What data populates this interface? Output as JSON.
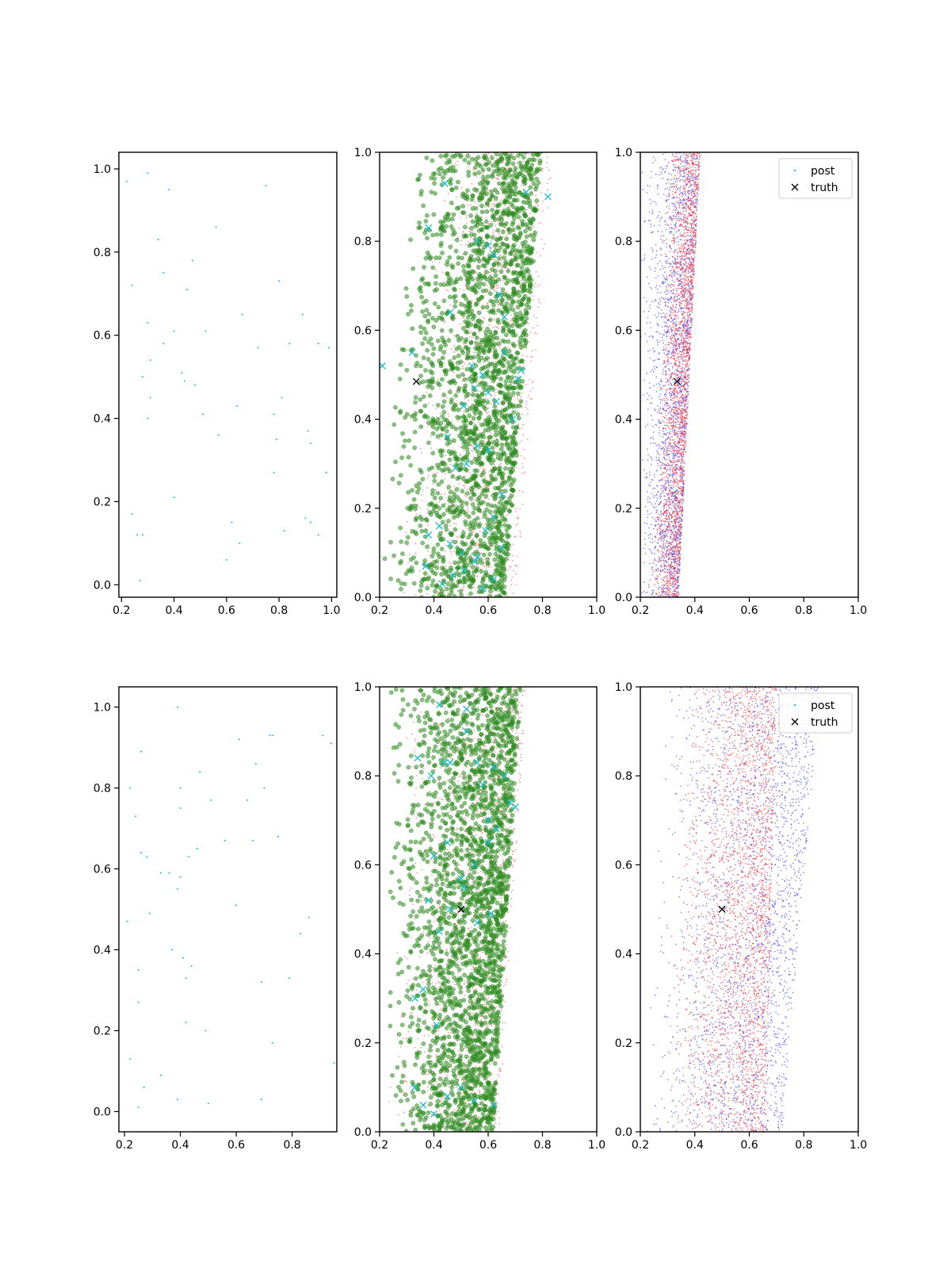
{
  "chart_data": [
    {
      "panel": "top-left",
      "type": "scatter",
      "xlim": [
        0.19,
        1.02
      ],
      "ylim": [
        -0.03,
        1.04
      ],
      "xticks": [
        "0.2",
        "0.4",
        "0.6",
        "0.8",
        "1.0"
      ],
      "yticks": [
        "0.0",
        "0.2",
        "0.4",
        "0.6",
        "0.8",
        "1.0"
      ],
      "grid": false,
      "series": [
        {
          "color": "#17becf",
          "marker": "dot",
          "x": [
            0.22,
            0.3,
            0.38,
            0.75,
            0.56,
            0.34,
            0.47,
            0.36,
            0.24,
            0.45,
            0.8,
            0.66,
            0.3,
            0.4,
            0.52,
            0.89,
            0.36,
            0.95,
            0.84,
            0.99,
            0.72,
            0.31,
            0.43,
            0.28,
            0.48,
            0.31,
            0.44,
            0.81,
            0.57,
            0.64,
            0.78,
            0.3,
            0.51,
            0.79,
            0.91,
            0.92,
            0.78,
            0.98,
            0.4,
            0.24,
            0.62,
            0.9,
            0.92,
            0.26,
            0.28,
            0.82,
            0.95,
            0.65,
            0.6,
            0.27
          ],
          "y": [
            0.97,
            0.99,
            0.95,
            0.96,
            0.86,
            0.83,
            0.78,
            0.75,
            0.72,
            0.71,
            0.73,
            0.65,
            0.63,
            0.61,
            0.61,
            0.65,
            0.58,
            0.58,
            0.58,
            0.57,
            0.57,
            0.54,
            0.51,
            0.5,
            0.48,
            0.45,
            0.49,
            0.45,
            0.36,
            0.43,
            0.41,
            0.4,
            0.41,
            0.35,
            0.37,
            0.34,
            0.27,
            0.27,
            0.21,
            0.17,
            0.15,
            0.16,
            0.15,
            0.12,
            0.12,
            0.13,
            0.12,
            0.1,
            0.06,
            0.01
          ]
        }
      ]
    },
    {
      "panel": "top-middle",
      "type": "scatter",
      "xlim": [
        0.2,
        1.0
      ],
      "ylim": [
        0.0,
        1.0
      ],
      "xticks": [
        "0.2",
        "0.4",
        "0.6",
        "0.8",
        "1.0"
      ],
      "yticks": [
        "0.0",
        "0.2",
        "0.4",
        "0.6",
        "0.8",
        "1.0"
      ],
      "grid": false,
      "generated_clouds": [
        {
          "color": "#ff4040",
          "marker": "dot",
          "count": 1400,
          "band_left_at_y0": [
            0.26,
            0.58
          ],
          "band_left_at_y1": [
            0.42,
            0.7
          ],
          "band_right_at_y0": 0.7,
          "band_right_at_y1": 0.84
        },
        {
          "color": "#2b8a1e",
          "marker": "circle",
          "count": 2200,
          "band_left_at_y0": [
            0.2,
            0.66
          ],
          "band_left_at_y1": [
            0.3,
            0.8
          ]
        }
      ],
      "series": [
        {
          "color": "#17becf",
          "marker": "x",
          "x": [
            0.21,
            0.32,
            0.38,
            0.44,
            0.46,
            0.56,
            0.6,
            0.62,
            0.64,
            0.66,
            0.72,
            0.74,
            0.82,
            0.55,
            0.58,
            0.6,
            0.63,
            0.66,
            0.69,
            0.71,
            0.45,
            0.51,
            0.54,
            0.56,
            0.48,
            0.52,
            0.6,
            0.38,
            0.42,
            0.46,
            0.5,
            0.55,
            0.59,
            0.62,
            0.65,
            0.37,
            0.43,
            0.47,
            0.51,
            0.56,
            0.58,
            0.62,
            0.65
          ],
          "y": [
            0.52,
            0.55,
            0.83,
            0.93,
            0.64,
            0.8,
            0.79,
            0.77,
            0.68,
            0.63,
            0.51,
            0.91,
            0.9,
            0.47,
            0.5,
            0.46,
            0.44,
            0.55,
            0.4,
            0.49,
            0.36,
            0.43,
            0.52,
            0.34,
            0.29,
            0.3,
            0.33,
            0.14,
            0.16,
            0.12,
            0.1,
            0.08,
            0.15,
            0.18,
            0.23,
            0.07,
            0.03,
            0.05,
            0.06,
            0.09,
            0.02,
            0.04,
            0.11
          ]
        },
        {
          "color": "#000000",
          "marker": "x",
          "x": [
            0.335
          ],
          "y": [
            0.485
          ]
        }
      ]
    },
    {
      "panel": "top-right",
      "type": "scatter",
      "xlim": [
        0.2,
        1.0
      ],
      "ylim": [
        0.0,
        1.0
      ],
      "xticks": [
        "0.2",
        "0.4",
        "0.6",
        "0.8",
        "1.0"
      ],
      "yticks": [
        "0.0",
        "0.2",
        "0.4",
        "0.6",
        "0.8",
        "1.0"
      ],
      "grid": false,
      "legend": {
        "placement": "top-right",
        "entries": [
          {
            "label": "post",
            "color": "#17becf",
            "marker": "dot"
          },
          {
            "label": "truth",
            "color": "#000000",
            "marker": "x"
          }
        ]
      },
      "generated_clouds": [
        {
          "color": "#3030ff",
          "marker": "dot",
          "count": 2200,
          "band_left_at_y0": [
            0.2,
            0.34
          ],
          "band_left_at_y1": [
            0.2,
            0.42
          ]
        },
        {
          "color": "#ff2020",
          "marker": "dot",
          "count": 2200,
          "band_left_at_y0": [
            0.24,
            0.34
          ],
          "band_left_at_y1": [
            0.3,
            0.42
          ]
        }
      ],
      "series": [
        {
          "color": "#000000",
          "marker": "x",
          "x": [
            0.335
          ],
          "y": [
            0.485
          ]
        }
      ]
    },
    {
      "panel": "bottom-left",
      "type": "scatter",
      "xlim": [
        0.18,
        0.96
      ],
      "ylim": [
        -0.05,
        1.05
      ],
      "xticks": [
        "0.2",
        "0.4",
        "0.6",
        "0.8"
      ],
      "yticks": [
        "0.0",
        "0.2",
        "0.4",
        "0.6",
        "0.8",
        "1.0"
      ],
      "grid": false,
      "series": [
        {
          "color": "#17becf",
          "marker": "dot",
          "x": [
            0.39,
            0.61,
            0.67,
            0.72,
            0.94,
            0.73,
            0.91,
            0.26,
            0.22,
            0.4,
            0.47,
            0.7,
            0.64,
            0.24,
            0.4,
            0.51,
            0.66,
            0.75,
            0.56,
            0.26,
            0.28,
            0.46,
            0.43,
            0.33,
            0.36,
            0.4,
            0.39,
            0.6,
            0.29,
            0.21,
            0.86,
            0.83,
            0.37,
            0.41,
            0.44,
            0.25,
            0.42,
            0.69,
            0.79,
            0.25,
            0.42,
            0.49,
            0.73,
            0.22,
            0.33,
            0.95,
            0.27,
            0.39,
            0.5,
            0.69,
            0.25
          ],
          "y": [
            1.0,
            0.92,
            0.86,
            0.93,
            0.91,
            0.93,
            0.93,
            0.89,
            0.8,
            0.8,
            0.84,
            0.8,
            0.77,
            0.73,
            0.75,
            0.77,
            0.67,
            0.68,
            0.67,
            0.64,
            0.63,
            0.65,
            0.63,
            0.59,
            0.59,
            0.58,
            0.55,
            0.51,
            0.49,
            0.47,
            0.48,
            0.44,
            0.4,
            0.38,
            0.36,
            0.35,
            0.33,
            0.32,
            0.33,
            0.27,
            0.22,
            0.2,
            0.17,
            0.13,
            0.09,
            0.12,
            0.06,
            0.03,
            0.02,
            0.03,
            0.01
          ]
        }
      ]
    },
    {
      "panel": "bottom-middle",
      "type": "scatter",
      "xlim": [
        0.2,
        1.0
      ],
      "ylim": [
        0.0,
        1.0
      ],
      "xticks": [
        "0.2",
        "0.4",
        "0.6",
        "0.8",
        "1.0"
      ],
      "yticks": [
        "0.0",
        "0.2",
        "0.4",
        "0.6",
        "0.8",
        "1.0"
      ],
      "grid": false,
      "generated_clouds": [
        {
          "color": "#ff4040",
          "marker": "dot",
          "count": 1400,
          "band_left_at_y0": [
            0.22,
            0.56
          ],
          "band_left_at_y1": [
            0.3,
            0.68
          ],
          "band_right_at_y0": 0.64,
          "band_right_at_y1": 0.74
        },
        {
          "color": "#2b8a1e",
          "marker": "circle",
          "count": 2400,
          "band_left_at_y0": [
            0.24,
            0.62
          ],
          "band_left_at_y1": [
            0.22,
            0.72
          ]
        }
      ],
      "series": [
        {
          "color": "#17becf",
          "marker": "x",
          "x": [
            0.42,
            0.52,
            0.46,
            0.34,
            0.39,
            0.44,
            0.52,
            0.56,
            0.58,
            0.6,
            0.62,
            0.66,
            0.7,
            0.4,
            0.45,
            0.5,
            0.55,
            0.6,
            0.63,
            0.68,
            0.38,
            0.42,
            0.46,
            0.51,
            0.56,
            0.61,
            0.33,
            0.36,
            0.41,
            0.33,
            0.36,
            0.4,
            0.45,
            0.5,
            0.55,
            0.62
          ],
          "y": [
            0.96,
            0.95,
            0.83,
            0.84,
            0.8,
            0.83,
            0.9,
            0.83,
            0.78,
            0.7,
            0.82,
            0.8,
            0.73,
            0.62,
            0.65,
            0.57,
            0.6,
            0.65,
            0.68,
            0.74,
            0.52,
            0.45,
            0.5,
            0.55,
            0.47,
            0.49,
            0.3,
            0.32,
            0.24,
            0.1,
            0.06,
            0.04,
            0.08,
            0.1,
            0.07,
            0.06
          ]
        },
        {
          "color": "#000000",
          "marker": "x",
          "x": [
            0.5
          ],
          "y": [
            0.5
          ]
        }
      ]
    },
    {
      "panel": "bottom-right",
      "type": "scatter",
      "xlim": [
        0.2,
        1.0
      ],
      "ylim": [
        0.0,
        1.0
      ],
      "xticks": [
        "0.2",
        "0.4",
        "0.6",
        "0.8",
        "1.0"
      ],
      "yticks": [
        "0.0",
        "0.2",
        "0.4",
        "0.6",
        "0.8",
        "1.0"
      ],
      "grid": false,
      "legend": {
        "placement": "top-right",
        "entries": [
          {
            "label": "post",
            "color": "#17becf",
            "marker": "dot"
          },
          {
            "label": "truth",
            "color": "#000000",
            "marker": "x"
          }
        ]
      },
      "generated_clouds": [
        {
          "color": "#3030ff",
          "marker": "dot",
          "count": 2400,
          "band_left_at_y0": [
            0.2,
            0.72
          ],
          "band_left_at_y1": [
            0.28,
            0.86
          ]
        },
        {
          "color": "#ff2020",
          "marker": "dot",
          "count": 2400,
          "band_left_at_y0": [
            0.28,
            0.66
          ],
          "band_left_at_y1": [
            0.36,
            0.7
          ]
        }
      ],
      "series": [
        {
          "color": "#000000",
          "marker": "x",
          "x": [
            0.5
          ],
          "y": [
            0.5
          ]
        }
      ]
    }
  ]
}
